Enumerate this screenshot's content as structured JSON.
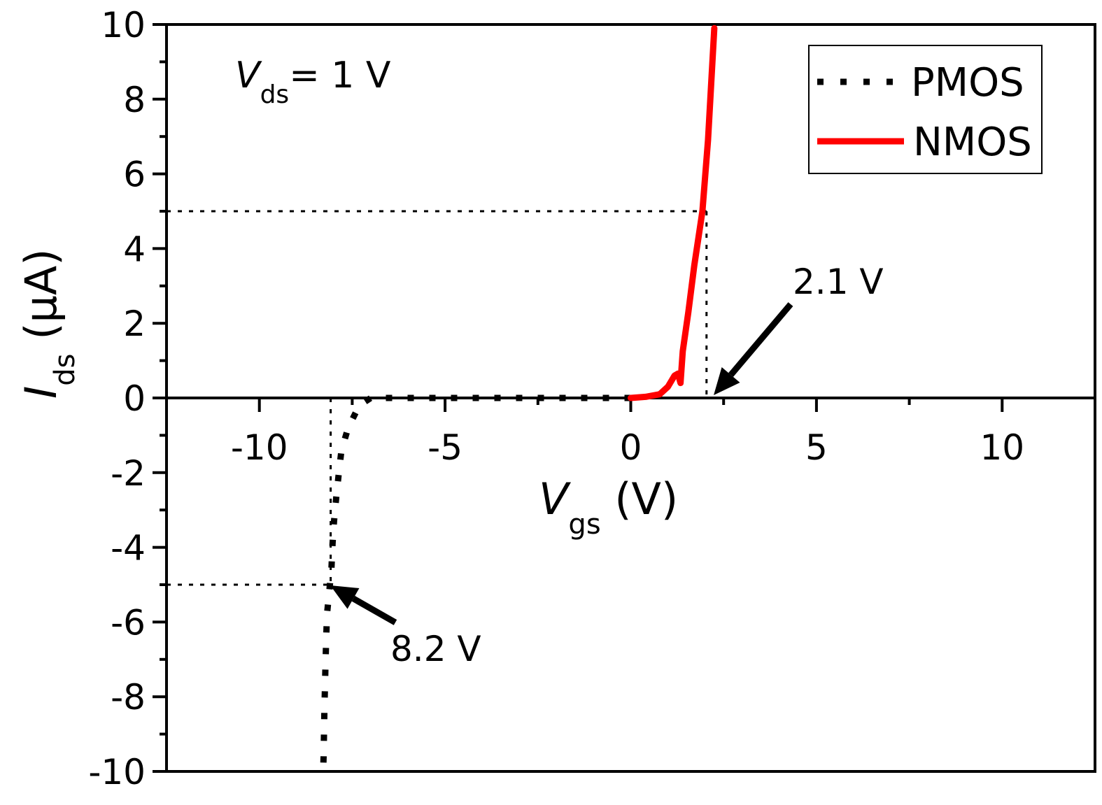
{
  "chart_data": {
    "type": "line",
    "title": "",
    "xlabel": {
      "main": "V",
      "sub": "gs",
      "unit": " (V)"
    },
    "ylabel": {
      "main": "I",
      "sub": "ds",
      "unit": " (μA)"
    },
    "xlim": [
      -12.5,
      12.5
    ],
    "ylim": [
      -10,
      10
    ],
    "xticks": [
      -10,
      -5,
      0,
      5,
      10
    ],
    "xtick_labels": [
      "-10",
      "-5",
      "0",
      "5",
      "10"
    ],
    "yticks": [
      -10,
      -8,
      -6,
      -4,
      -2,
      0,
      2,
      4,
      6,
      8,
      10
    ],
    "ytick_labels": [
      "-10",
      "-8",
      "-6",
      "-4",
      "-2",
      "0",
      "2",
      "4",
      "6",
      "8",
      "10"
    ],
    "grid": false,
    "legend_position": "top-right",
    "series": [
      {
        "name": "PMOS",
        "color": "#000000",
        "style": "dotted",
        "x": [
          0,
          -3,
          -6,
          -7.0,
          -7.31,
          -7.61,
          -7.79,
          -7.86,
          -7.93,
          -7.99,
          -8.03,
          -8.06,
          -8.12,
          -8.18,
          -8.2,
          -8.22,
          -8.25,
          -8.27,
          -8.28
        ],
        "y": [
          0,
          0,
          0,
          0,
          -0.2,
          -0.8,
          -1.4,
          -2.0,
          -2.66,
          -3.3,
          -3.9,
          -4.57,
          -5.2,
          -5.8,
          -6.45,
          -7.13,
          -8.4,
          -9.6,
          -9.9
        ]
      },
      {
        "name": "NMOS",
        "color": "#ff0000",
        "style": "solid",
        "x": [
          0,
          0.4,
          0.78,
          1.0,
          1.18,
          1.27,
          1.34,
          1.4,
          1.55,
          1.71,
          1.93,
          2.08,
          2.25
        ],
        "y": [
          0,
          0.03,
          0.1,
          0.3,
          0.6,
          0.65,
          0.4,
          1.25,
          2.3,
          3.55,
          5.0,
          6.9,
          9.9
        ]
      }
    ],
    "annotations": {
      "condition": {
        "main": "V",
        "sub": "ds",
        "rest": "= 1 V"
      },
      "nmos_threshold": {
        "label": "2.1 V",
        "x": 2.04,
        "y": 5
      },
      "pmos_threshold": {
        "label": "8.2 V",
        "x": -8.08,
        "y": -5
      }
    }
  }
}
